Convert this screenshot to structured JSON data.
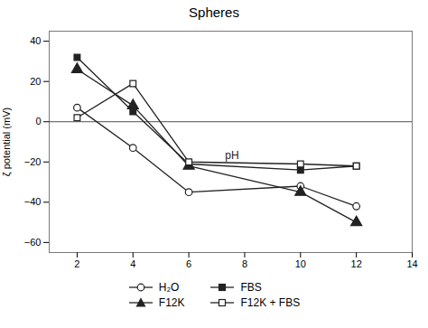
{
  "chart_data": {
    "type": "line",
    "title": "Spheres",
    "ylabel": "ζ potential (mV)",
    "x": [
      2,
      4,
      6,
      10,
      12
    ],
    "series": [
      {
        "name": "H₂O",
        "color": "#222222",
        "marker": "circle-open",
        "values": [
          7,
          -13,
          -35,
          -32,
          -42
        ]
      },
      {
        "name": "FBS",
        "color": "#222222",
        "marker": "square",
        "values": [
          32,
          5,
          -21,
          -24,
          -22
        ]
      },
      {
        "name": "F12K",
        "color": "#222222",
        "marker": "triangle",
        "values": [
          26,
          8,
          -22,
          -35,
          -50
        ]
      },
      {
        "name": "F12K + FBS",
        "color": "#222222",
        "marker": "square-open",
        "values": [
          2,
          19,
          -20,
          -21,
          -22
        ]
      }
    ],
    "annotations": [
      {
        "text": "pH",
        "x": 7.3,
        "y": -17
      }
    ],
    "xlim": [
      1,
      14
    ],
    "ylim": [
      -65,
      45
    ],
    "xticks": [
      2,
      4,
      6,
      8,
      10,
      12,
      14
    ],
    "yticks": [
      -60,
      -40,
      -20,
      0,
      20,
      40
    ],
    "grid": false,
    "legend": "bottom"
  }
}
